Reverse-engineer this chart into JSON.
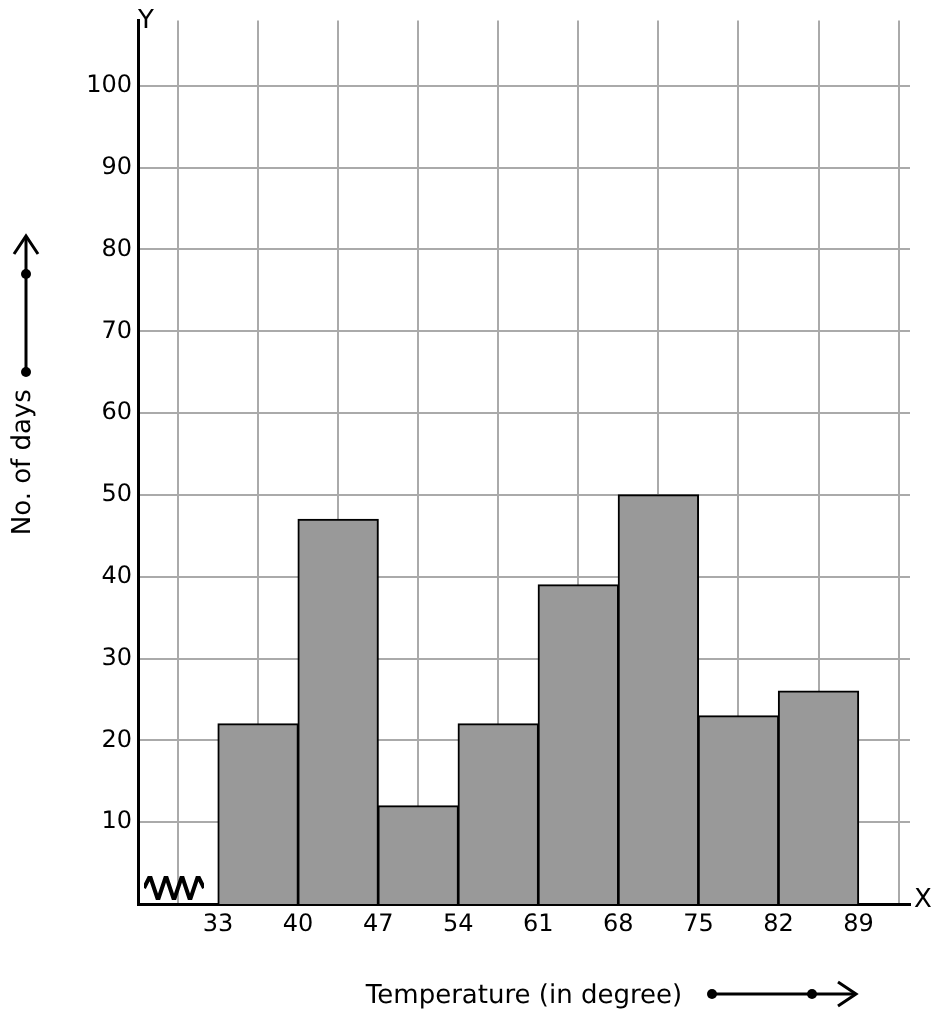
{
  "chart_data": {
    "type": "histogram",
    "xlabel": "Temperature (in degree)",
    "ylabel": "No. of days",
    "bins": [
      33,
      40,
      47,
      54,
      61,
      68,
      75,
      82,
      89
    ],
    "values": [
      22,
      47,
      12,
      22,
      39,
      50,
      23,
      26
    ],
    "color": "#999999",
    "xlim": [
      26,
      93.5
    ],
    "xticks": [
      33,
      40,
      47,
      54,
      61,
      68,
      75,
      82,
      89
    ],
    "ylim": [
      0,
      108
    ],
    "yticks": [
      10,
      20,
      30,
      40,
      50,
      60,
      70,
      80,
      90,
      100
    ],
    "grid": true,
    "annotations": [
      "Y",
      "X"
    ]
  }
}
